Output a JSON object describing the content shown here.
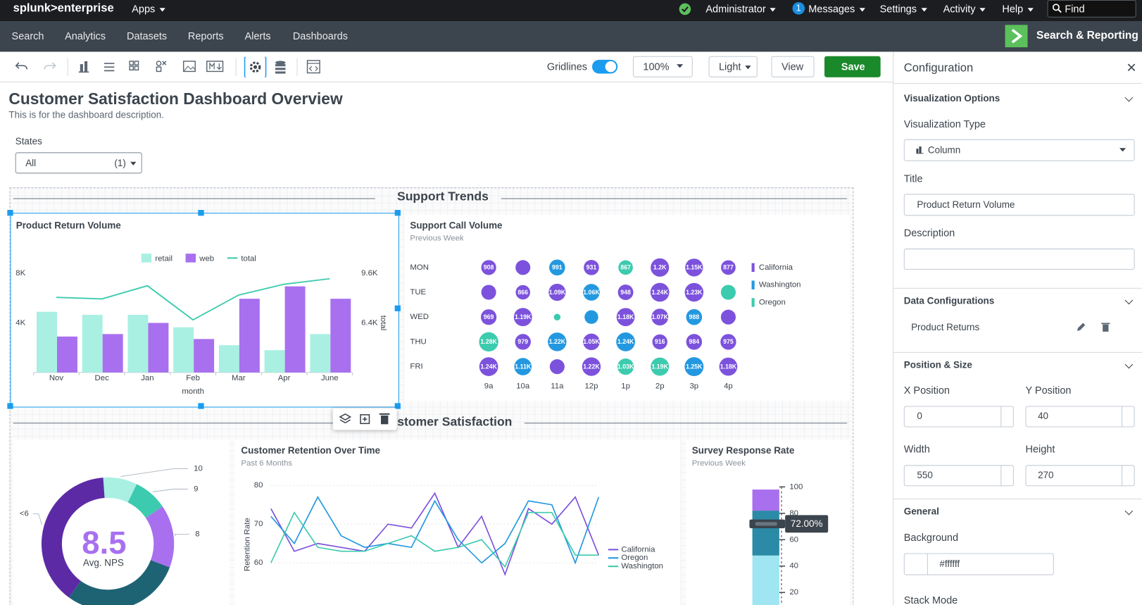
{
  "topbar": {
    "logo": "splunk>enterprise",
    "apps": "Apps",
    "user": "Administrator",
    "message_count": "1",
    "messages": "Messages",
    "settings": "Settings",
    "activity": "Activity",
    "help": "Help",
    "search": "Find"
  },
  "nav": {
    "items": [
      "Search",
      "Analytics",
      "Datasets",
      "Reports",
      "Alerts",
      "Dashboards"
    ],
    "app": "Search & Reporting"
  },
  "toolbar": {
    "gridlines": "Gridlines",
    "zoom": "100%",
    "theme": "Light",
    "view": "View",
    "save": "Save"
  },
  "dashboard": {
    "title": "Customer Satisfaction Dashboard Overview",
    "description": "This is for the dashboard description.",
    "input": {
      "label": "States",
      "value": "All",
      "count": "(1)"
    },
    "sections": [
      "Support Trends",
      "Customer Satisfaction"
    ]
  },
  "chart_data": [
    {
      "type": "bar",
      "title": "Product Return Volume",
      "categories": [
        "Nov",
        "Dec",
        "Jan",
        "Feb",
        "Mar",
        "Apr",
        "June"
      ],
      "series": [
        {
          "name": "retail",
          "color": "#a9f0e3",
          "values": [
            4900,
            4650,
            4650,
            3650,
            2200,
            1800,
            3100
          ]
        },
        {
          "name": "web",
          "color": "#a870ef",
          "values": [
            2900,
            3100,
            4000,
            2700,
            5950,
            6950,
            5950
          ]
        },
        {
          "name": "total",
          "type": "line",
          "axis": "y2",
          "color": "#3ccbae",
          "values": [
            8050,
            7950,
            8800,
            6600,
            8200,
            8900,
            9250
          ]
        }
      ],
      "xlabel": "month",
      "y2label": "total",
      "ylim": [
        0,
        8000
      ],
      "yticks": [
        {
          "value": 4000,
          "label": "4K"
        },
        {
          "value": 8000,
          "label": "8K"
        }
      ],
      "y2lim": [
        3200,
        9600
      ],
      "y2ticks": [
        {
          "value": 6400,
          "label": "6.4K"
        },
        {
          "value": 9600,
          "label": "9.6K"
        }
      ],
      "legend": "top"
    },
    {
      "type": "punchcard",
      "title": "Support Call Volume",
      "subtitle": "Previous Week",
      "rows": [
        "MON",
        "TUE",
        "WED",
        "THU",
        "FRI"
      ],
      "columns": [
        "9a",
        "10a",
        "11a",
        "12p",
        "1p",
        "2p",
        "3p",
        "4p"
      ],
      "values": [
        [
          908,
          900,
          991,
          931,
          867,
          1200,
          1150,
          877
        ],
        [
          900,
          866,
          1090,
          1060,
          948,
          1240,
          1230,
          900
        ],
        [
          969,
          1190,
          200,
          800,
          1180,
          1070,
          988,
          900
        ],
        [
          1280,
          979,
          1220,
          1050,
          1240,
          916,
          984,
          975
        ],
        [
          1240,
          1110,
          900,
          1220,
          1030,
          1190,
          1250,
          1180
        ]
      ],
      "value_labels": [
        [
          "908",
          null,
          "991",
          "931",
          "867",
          "1.2K",
          "1.15K",
          "877"
        ],
        [
          null,
          "866",
          "1.09K",
          "1.06K",
          "948",
          "1.24K",
          "1.23K",
          null
        ],
        [
          "969",
          "1.19K",
          null,
          null,
          "1.18K",
          "1.07K",
          "988",
          null
        ],
        [
          "1.28K",
          "979",
          "1.22K",
          "1.05K",
          "1.24K",
          "916",
          "984",
          "975"
        ],
        [
          "1.24K",
          "1.11K",
          null,
          "1.22K",
          "1.03K",
          "1.19K",
          "1.25K",
          "1.18K"
        ]
      ],
      "state": [
        [
          0,
          0,
          1,
          0,
          2,
          0,
          0,
          0
        ],
        [
          0,
          0,
          0,
          1,
          0,
          0,
          0,
          2
        ],
        [
          0,
          0,
          2,
          1,
          0,
          0,
          1,
          0
        ],
        [
          2,
          0,
          1,
          0,
          1,
          0,
          0,
          0
        ],
        [
          0,
          1,
          0,
          0,
          2,
          2,
          1,
          0
        ]
      ],
      "series": [
        {
          "name": "California",
          "color": "#7c52dc"
        },
        {
          "name": "Washington",
          "color": "#2398e0"
        },
        {
          "name": "Oregon",
          "color": "#3ccbae"
        }
      ],
      "legend": "right"
    },
    {
      "type": "donut",
      "categories": [
        "10",
        "9",
        "8",
        null,
        "<6"
      ],
      "values": [
        8.3,
        8.3,
        15.3,
        29.2,
        38.9
      ],
      "colors": [
        "#a9f0e3",
        "#3ccbae",
        "#a870ef",
        "#1e6374",
        "#5d2aa6"
      ],
      "center_value": 8.5,
      "center_label": "Avg. NPS"
    },
    {
      "type": "line",
      "title": "Customer Retention Over Time",
      "subtitle": "Past 6 Months",
      "ylabel": "Retention Rate",
      "ylim": [
        51,
        83
      ],
      "yticks": [
        60,
        70,
        80
      ],
      "grid": true,
      "legend": "right",
      "series": [
        {
          "name": "California",
          "color": "#7c52dc",
          "values": [
            74,
            63,
            65,
            64,
            63,
            70,
            69,
            78,
            64,
            72,
            57,
            74,
            70,
            77,
            62
          ]
        },
        {
          "name": "Oregon",
          "color": "#2398e0",
          "values": [
            72,
            65,
            77,
            67,
            64,
            65,
            64,
            76,
            66,
            60,
            65,
            76,
            75,
            60,
            77
          ]
        },
        {
          "name": "Washington",
          "color": "#3ccbae",
          "values": [
            60,
            73,
            64,
            63,
            63,
            65,
            67,
            63,
            64,
            66,
            59,
            73,
            73,
            62,
            62
          ]
        }
      ]
    },
    {
      "type": "gauge",
      "title": "Survey Response Rate",
      "subtitle": "Previous Week",
      "value": 72,
      "value_label": "72.00%",
      "ylim": [
        0,
        100
      ],
      "yticks": [
        20,
        40,
        60,
        80,
        100
      ],
      "ranges": [
        0,
        48,
        82,
        98
      ],
      "colors": [
        "#9fe6f2",
        "#2b8aa5",
        "#a870ef"
      ]
    }
  ],
  "config": {
    "title": "Configuration",
    "sections": {
      "visualization": "Visualization Options",
      "data": "Data Configurations",
      "position": "Position & Size",
      "general": "General"
    },
    "viz_type_label": "Visualization Type",
    "viz_type": "Column",
    "title_label": "Title",
    "title_value": "Product Return Volume",
    "description_label": "Description",
    "data_source": "Product Returns",
    "x_label": "X Position",
    "x_value": 0,
    "y_label": "Y Position",
    "y_value": 40,
    "width_label": "Width",
    "width_value": 550,
    "height_label": "Height",
    "height_value": 270,
    "background_label": "Background",
    "background_value": "#ffffff",
    "stack_mode_label": "Stack Mode"
  }
}
